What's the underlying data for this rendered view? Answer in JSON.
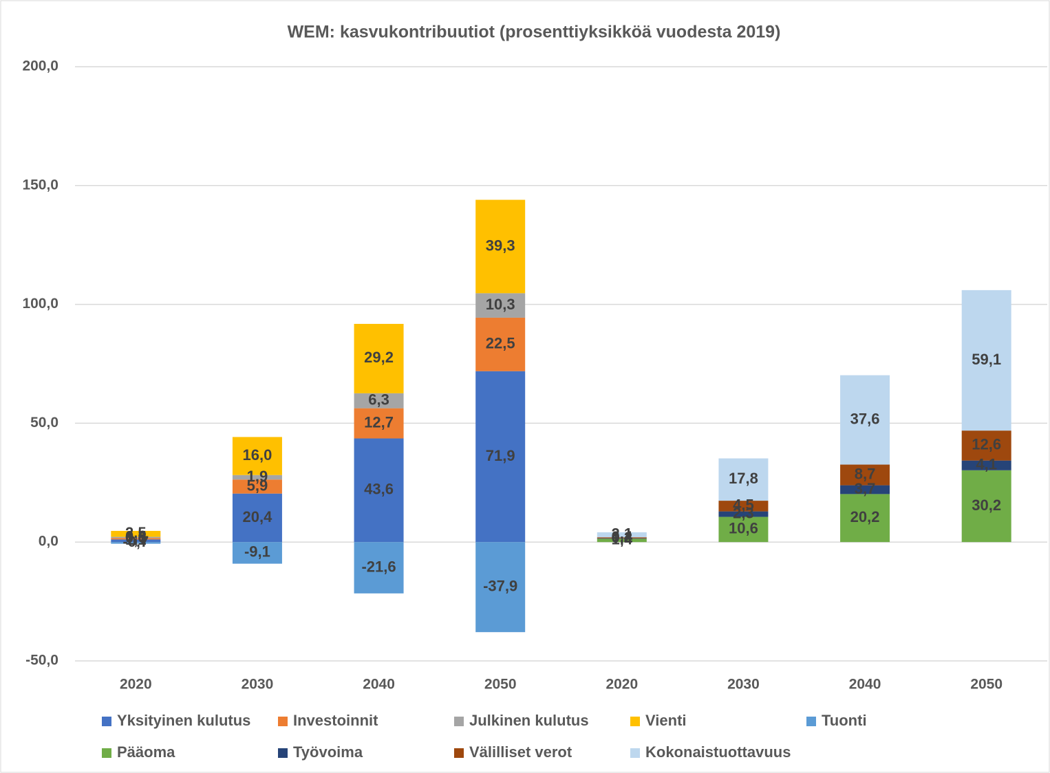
{
  "chart_data": {
    "type": "stacked_bar",
    "title": "WEM: kasvukontribuutiot (prosenttiyksikköä vuodesta 2019)",
    "categories": [
      "2020",
      "2030",
      "2040",
      "2050",
      "2020",
      "2030",
      "2040",
      "2050"
    ],
    "series": [
      {
        "name": "Yksityinen kulutus",
        "color": "#4472c4",
        "values": [
          1.1,
          20.4,
          43.6,
          71.9,
          null,
          null,
          null,
          null
        ],
        "value_labels": [
          "1,1",
          "20,4",
          "43,6",
          "71,9",
          null,
          null,
          null,
          null
        ]
      },
      {
        "name": "Investoinnit",
        "color": "#ed7d31",
        "values": [
          0.6,
          5.9,
          12.7,
          22.5,
          null,
          null,
          null,
          null
        ],
        "value_labels": [
          "0,6",
          "5,9",
          "12,7",
          "22,5",
          null,
          null,
          null,
          null
        ]
      },
      {
        "name": "Julkinen kulutus",
        "color": "#a5a5a5",
        "values": [
          0.5,
          1.9,
          6.3,
          10.3,
          null,
          null,
          null,
          null
        ],
        "value_labels": [
          "0,5",
          "1,9",
          "6,3",
          "10,3",
          null,
          null,
          null,
          null
        ]
      },
      {
        "name": "Vienti",
        "color": "#ffc000",
        "values": [
          2.5,
          16.0,
          29.2,
          39.3,
          null,
          null,
          null,
          null
        ],
        "value_labels": [
          "2,5",
          "16,0",
          "29,2",
          "39,3",
          null,
          null,
          null,
          null
        ]
      },
      {
        "name": "Tuonti",
        "color": "#5b9bd5",
        "values": [
          -0.7,
          -9.1,
          -21.6,
          -37.9,
          null,
          null,
          null,
          null
        ],
        "value_labels": [
          "-0,7",
          "-9,1",
          "-21,6",
          "-37,9",
          null,
          null,
          null,
          null
        ]
      },
      {
        "name": "Pääoma",
        "color": "#70ad47",
        "values": [
          null,
          null,
          null,
          null,
          1.4,
          10.6,
          20.2,
          30.2
        ],
        "value_labels": [
          null,
          null,
          null,
          null,
          "1,4",
          "10,6",
          "20,2",
          "30,2"
        ]
      },
      {
        "name": "Työvoima",
        "color": "#264478",
        "values": [
          null,
          null,
          null,
          null,
          0.2,
          2.3,
          3.7,
          4.1
        ],
        "value_labels": [
          null,
          null,
          null,
          null,
          "0,2",
          "2,3",
          "3,7",
          "4,1"
        ]
      },
      {
        "name": "Välilliset verot",
        "color": "#9e480e",
        "values": [
          null,
          null,
          null,
          null,
          0.4,
          4.5,
          8.7,
          12.6
        ],
        "value_labels": [
          null,
          null,
          null,
          null,
          "0,4",
          "4,5",
          "8,7",
          "12,6"
        ]
      },
      {
        "name": "Kokonaistuottavuus",
        "color": "#bdd7ee",
        "values": [
          null,
          null,
          null,
          null,
          2.1,
          17.8,
          37.6,
          59.1
        ],
        "value_labels": [
          null,
          null,
          null,
          null,
          "2,1",
          "17,8",
          "37,6",
          "59,1"
        ]
      }
    ],
    "ylim": [
      -50,
      200
    ],
    "yticks": [
      {
        "value": -50,
        "label": "-50,0"
      },
      {
        "value": 0,
        "label": "0,0"
      },
      {
        "value": 50,
        "label": "50,0"
      },
      {
        "value": 100,
        "label": "100,0"
      },
      {
        "value": 150,
        "label": "150,0"
      },
      {
        "value": 200,
        "label": "200,0"
      }
    ],
    "grid": true,
    "legend": "bottom"
  }
}
